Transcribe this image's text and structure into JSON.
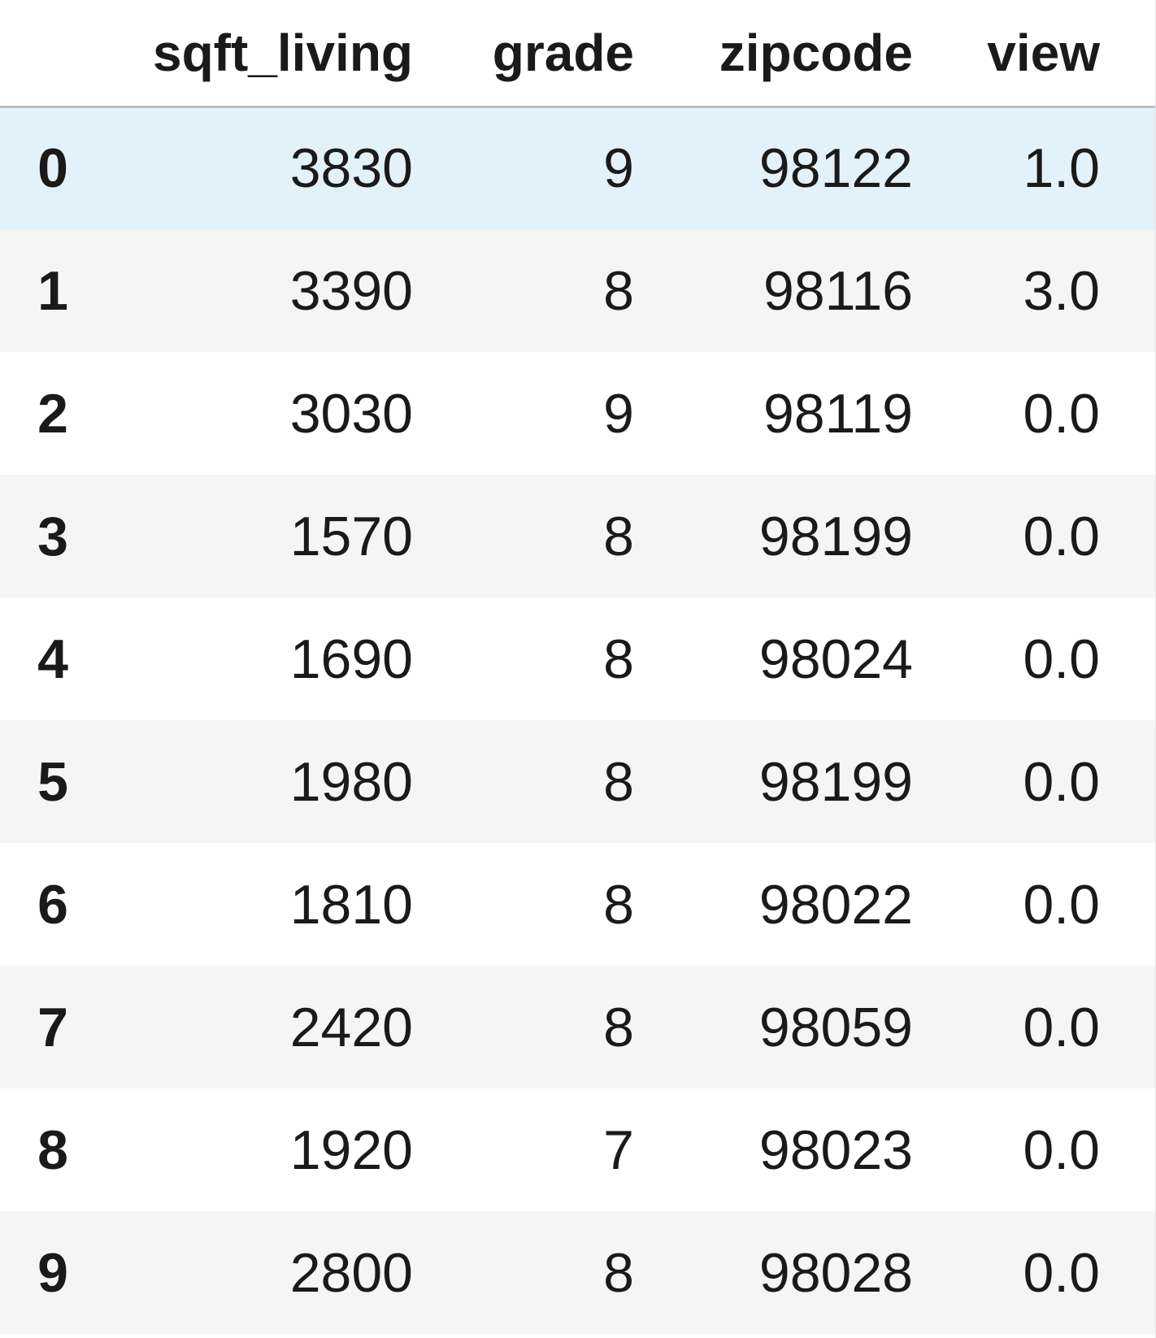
{
  "table": {
    "columns": [
      "",
      "sqft_living",
      "grade",
      "zipcode",
      "view"
    ],
    "rows": [
      {
        "index": "0",
        "sqft_living": "3830",
        "grade": "9",
        "zipcode": "98122",
        "view": "1.0"
      },
      {
        "index": "1",
        "sqft_living": "3390",
        "grade": "8",
        "zipcode": "98116",
        "view": "3.0"
      },
      {
        "index": "2",
        "sqft_living": "3030",
        "grade": "9",
        "zipcode": "98119",
        "view": "0.0"
      },
      {
        "index": "3",
        "sqft_living": "1570",
        "grade": "8",
        "zipcode": "98199",
        "view": "0.0"
      },
      {
        "index": "4",
        "sqft_living": "1690",
        "grade": "8",
        "zipcode": "98024",
        "view": "0.0"
      },
      {
        "index": "5",
        "sqft_living": "1980",
        "grade": "8",
        "zipcode": "98199",
        "view": "0.0"
      },
      {
        "index": "6",
        "sqft_living": "1810",
        "grade": "8",
        "zipcode": "98022",
        "view": "0.0"
      },
      {
        "index": "7",
        "sqft_living": "2420",
        "grade": "8",
        "zipcode": "98059",
        "view": "0.0"
      },
      {
        "index": "8",
        "sqft_living": "1920",
        "grade": "7",
        "zipcode": "98023",
        "view": "0.0"
      },
      {
        "index": "9",
        "sqft_living": "2800",
        "grade": "8",
        "zipcode": "98028",
        "view": "0.0"
      }
    ],
    "hovered_row_index": 0
  },
  "colors": {
    "hover_row": "#e3f1fb",
    "striped_row": "#f5f5f5",
    "header_border": "#bdbdbd",
    "text": "#1a1a1a"
  }
}
